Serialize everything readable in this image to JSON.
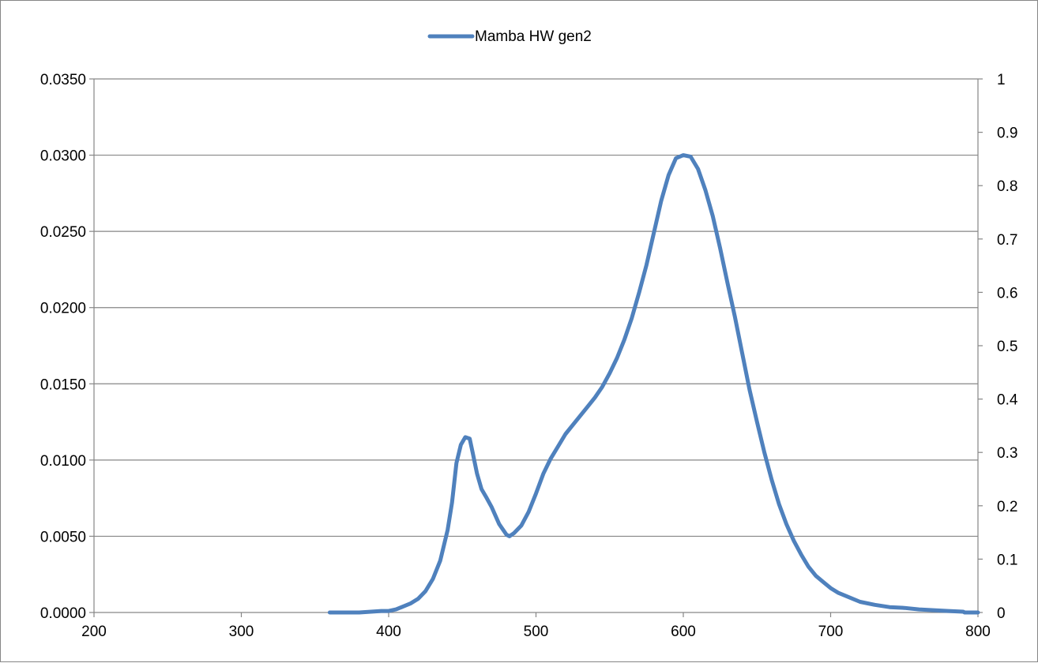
{
  "chart_data": {
    "type": "line",
    "title": "",
    "xlabel": "",
    "ylabel": "",
    "xlim": [
      200,
      800
    ],
    "ylim": [
      0,
      0.035
    ],
    "y2lim": [
      0,
      1
    ],
    "grid": "horizontal",
    "legend_position": "top-center",
    "x_ticks": [
      "200",
      "300",
      "400",
      "500",
      "600",
      "700",
      "800"
    ],
    "y_ticks": [
      "0.0000",
      "0.0050",
      "0.0100",
      "0.0150",
      "0.0200",
      "0.0250",
      "0.0300",
      "0.0350"
    ],
    "y2_ticks": [
      "0",
      "0.1",
      "0.2",
      "0.3",
      "0.4",
      "0.5",
      "0.6",
      "0.7",
      "0.8",
      "0.9",
      "1"
    ],
    "series": [
      {
        "name": "Mamba HW gen2",
        "color": "#4f81bd",
        "axis": "left",
        "x": [
          360,
          380,
          395,
          400,
          405,
          410,
          415,
          420,
          425,
          430,
          435,
          440,
          443,
          446,
          449,
          452,
          455,
          457,
          460,
          463,
          466,
          470,
          475,
          480,
          482,
          485,
          490,
          495,
          500,
          505,
          510,
          515,
          520,
          525,
          530,
          535,
          540,
          545,
          550,
          555,
          560,
          565,
          570,
          575,
          580,
          585,
          590,
          595,
          600,
          605,
          610,
          615,
          620,
          625,
          630,
          635,
          640,
          645,
          650,
          655,
          660,
          665,
          670,
          675,
          680,
          685,
          690,
          695,
          700,
          705,
          710,
          720,
          730,
          740,
          750,
          760,
          770,
          780,
          790,
          791,
          800
        ],
        "y": [
          0.0,
          0.0,
          0.0001,
          0.0001,
          0.0002,
          0.0004,
          0.0006,
          0.0009,
          0.0014,
          0.0022,
          0.0034,
          0.0054,
          0.0072,
          0.0098,
          0.011,
          0.0115,
          0.0114,
          0.0105,
          0.0091,
          0.0081,
          0.0076,
          0.0069,
          0.0058,
          0.0051,
          0.005,
          0.0052,
          0.0057,
          0.0066,
          0.0078,
          0.0091,
          0.0101,
          0.0109,
          0.0117,
          0.0123,
          0.0129,
          0.0135,
          0.0141,
          0.0148,
          0.0157,
          0.0167,
          0.0179,
          0.0193,
          0.021,
          0.0228,
          0.0249,
          0.027,
          0.0287,
          0.0298,
          0.03,
          0.0299,
          0.0291,
          0.0277,
          0.026,
          0.0239,
          0.0216,
          0.0194,
          0.017,
          0.0146,
          0.0125,
          0.0105,
          0.0087,
          0.0071,
          0.0058,
          0.0047,
          0.0038,
          0.003,
          0.0024,
          0.002,
          0.0016,
          0.0013,
          0.0011,
          0.0007,
          0.0005,
          0.00035,
          0.0003,
          0.0002,
          0.00015,
          0.0001,
          5e-05,
          0.0,
          0.0
        ]
      }
    ]
  }
}
